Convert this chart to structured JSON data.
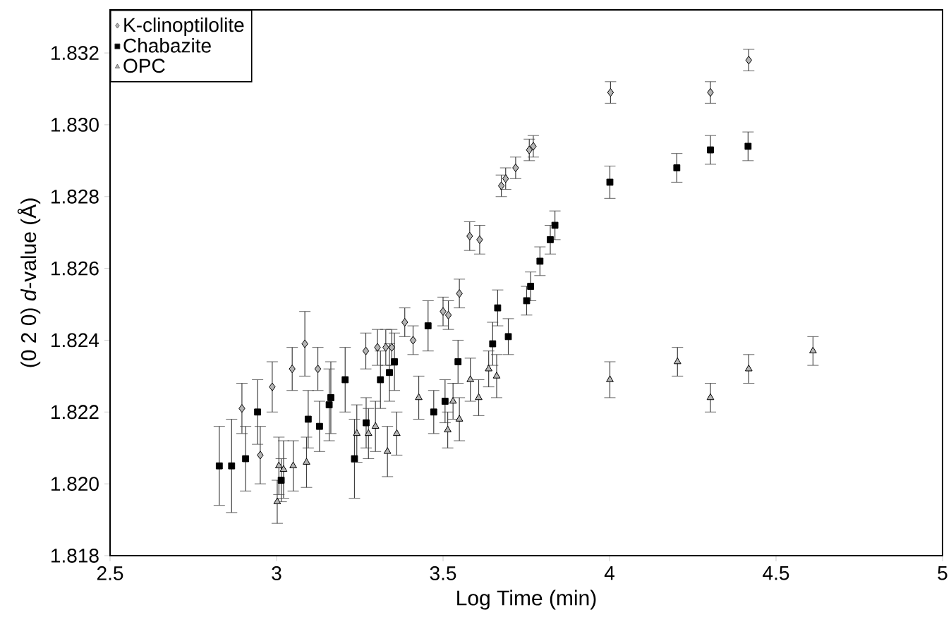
{
  "chart_data": {
    "type": "scatter",
    "xlabel": "Log Time (min)",
    "ylabel": "(0 2 0) *d*-value (Å)",
    "xlim": [
      2.5,
      5
    ],
    "xticks": [
      2.5,
      3,
      3.5,
      4,
      4.5,
      5
    ],
    "ylim": [
      1.818,
      1.8332
    ],
    "yticks": [
      1.818,
      {
        "value": 1.82,
        "label": "1.820"
      },
      1.822,
      1.824,
      1.826,
      1.828,
      {
        "value": 1.83,
        "label": "1.830"
      },
      1.832
    ],
    "grid": false,
    "legend": "top left",
    "series": [
      {
        "name": "K-clinoptilolite",
        "color": "#b4b4b4",
        "marker": "diamond",
        "x": [
          2.896,
          2.951,
          2.987,
          3.047,
          3.085,
          3.124,
          3.268,
          3.303,
          3.328,
          3.346,
          3.385,
          3.41,
          3.5,
          3.516,
          3.549,
          3.58,
          3.61,
          3.675,
          3.688,
          3.718,
          3.759,
          3.771,
          4.003,
          4.303,
          4.418
        ],
        "values": [
          1.8221,
          1.8208,
          1.8227,
          1.8232,
          1.8239,
          1.8232,
          1.8237,
          1.8238,
          1.8238,
          1.8238,
          1.8245,
          1.824,
          1.8248,
          1.8247,
          1.8253,
          1.8269,
          1.8268,
          1.8283,
          1.8285,
          1.8288,
          1.8293,
          1.8294,
          1.8309,
          1.8309,
          1.8318
        ],
        "errors": [
          0.0007,
          0.0008,
          0.0007,
          0.0006,
          0.0009,
          0.0006,
          0.0005,
          0.0005,
          0.0005,
          0.0005,
          0.0004,
          0.0004,
          0.0004,
          0.0004,
          0.0004,
          0.0004,
          0.0004,
          0.0003,
          0.0003,
          0.0003,
          0.0003,
          0.0003,
          0.0003,
          0.0003,
          0.0003
        ]
      },
      {
        "name": "Chabazite",
        "color": "#000000",
        "marker": "square",
        "x": [
          2.828,
          2.865,
          2.907,
          2.943,
          3.014,
          3.095,
          3.129,
          3.158,
          3.163,
          3.206,
          3.234,
          3.269,
          3.312,
          3.339,
          3.354,
          3.455,
          3.472,
          3.506,
          3.545,
          3.649,
          3.664,
          3.696,
          3.751,
          3.763,
          3.791,
          3.822,
          3.836,
          4.001,
          4.202,
          4.303,
          4.416
        ],
        "values": [
          1.8205,
          1.8205,
          1.8207,
          1.822,
          1.8201,
          1.8218,
          1.8216,
          1.8222,
          1.8224,
          1.8229,
          1.8207,
          1.8217,
          1.8229,
          1.8231,
          1.8234,
          1.8244,
          1.822,
          1.8223,
          1.8234,
          1.8239,
          1.8249,
          1.8241,
          1.8251,
          1.8255,
          1.8262,
          1.8268,
          1.8272,
          1.8284,
          1.8288,
          1.8293,
          1.8294
        ],
        "errors": [
          0.0011,
          0.0013,
          0.0009,
          0.0009,
          0.0006,
          0.0008,
          0.0007,
          0.001,
          0.001,
          0.0009,
          0.0011,
          0.0007,
          0.0008,
          0.0008,
          0.0008,
          0.0007,
          0.0006,
          0.0006,
          0.0006,
          0.0006,
          0.0005,
          0.0005,
          0.0004,
          0.0004,
          0.0004,
          0.0004,
          0.0004,
          0.00045,
          0.0004,
          0.0004,
          0.0004
        ]
      },
      {
        "name": "OPC",
        "color": "#b4b4b4",
        "marker": "triangle",
        "x": [
          3.002,
          3.007,
          3.021,
          3.05,
          3.09,
          3.241,
          3.276,
          3.297,
          3.333,
          3.361,
          3.427,
          3.514,
          3.53,
          3.549,
          3.582,
          3.607,
          3.637,
          3.661,
          4.001,
          4.204,
          4.303,
          4.418,
          4.611
        ],
        "values": [
          1.8195,
          1.8205,
          1.8204,
          1.8205,
          1.8206,
          1.8214,
          1.8214,
          1.8216,
          1.8209,
          1.8214,
          1.8224,
          1.8215,
          1.8223,
          1.8218,
          1.8229,
          1.8224,
          1.8232,
          1.823,
          1.8229,
          1.8234,
          1.8224,
          1.8232,
          1.8237
        ],
        "errors": [
          0.0006,
          0.0008,
          0.0008,
          0.0007,
          0.0007,
          0.0008,
          0.0007,
          0.0007,
          0.0007,
          0.0006,
          0.0006,
          0.0005,
          0.0005,
          0.0006,
          0.0006,
          0.0005,
          0.0005,
          0.0006,
          0.0005,
          0.0004,
          0.0004,
          0.0004,
          0.0004
        ]
      }
    ]
  }
}
